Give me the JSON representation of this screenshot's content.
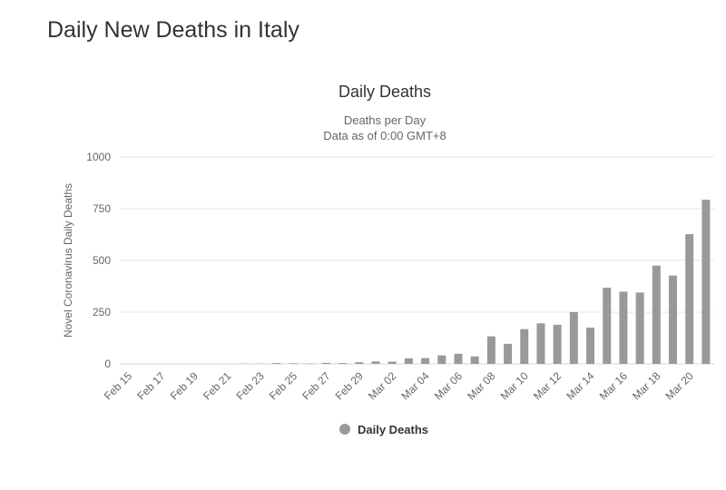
{
  "page": {
    "title": "Daily New Deaths in Italy"
  },
  "colors": {
    "bar": "#999999",
    "grid": "#e6e6e6",
    "axis_line": "#ccd6eb",
    "text": "#333333",
    "subtext": "#666666"
  },
  "chart_data": {
    "type": "bar",
    "title": "Daily Deaths",
    "subtitle_lines": [
      "Deaths per Day",
      "Data as of 0:00 GMT+8"
    ],
    "xlabel": "",
    "ylabel": "Novel Coronavirus Daily Deaths",
    "ylim": [
      0,
      1000
    ],
    "yticks": [
      0,
      250,
      500,
      750,
      1000
    ],
    "legend": {
      "label": "Daily Deaths",
      "position": "bottom-center"
    },
    "categories": [
      "Feb 15",
      "Feb 16",
      "Feb 17",
      "Feb 18",
      "Feb 19",
      "Feb 20",
      "Feb 21",
      "Feb 22",
      "Feb 23",
      "Feb 24",
      "Feb 25",
      "Feb 26",
      "Feb 27",
      "Feb 28",
      "Feb 29",
      "Mar 01",
      "Mar 02",
      "Mar 03",
      "Mar 04",
      "Mar 05",
      "Mar 06",
      "Mar 07",
      "Mar 08",
      "Mar 09",
      "Mar 10",
      "Mar 11",
      "Mar 12",
      "Mar 13",
      "Mar 14",
      "Mar 15",
      "Mar 16",
      "Mar 17",
      "Mar 18",
      "Mar 19",
      "Mar 20",
      "Mar 21"
    ],
    "tick_labels": [
      "Feb 15",
      "Feb 17",
      "Feb 19",
      "Feb 21",
      "Feb 23",
      "Feb 25",
      "Feb 27",
      "Feb 29",
      "Mar 02",
      "Mar 04",
      "Mar 06",
      "Mar 08",
      "Mar 10",
      "Mar 12",
      "Mar 14",
      "Mar 16",
      "Mar 18",
      "Mar 20"
    ],
    "series": [
      {
        "name": "Daily Deaths",
        "values": [
          0,
          0,
          0,
          0,
          0,
          0,
          0,
          1,
          1,
          4,
          3,
          2,
          5,
          4,
          8,
          12,
          11,
          27,
          28,
          41,
          49,
          36,
          133,
          97,
          168,
          196,
          189,
          250,
          175,
          368,
          349,
          345,
          475,
          427,
          627,
          793
        ]
      }
    ]
  }
}
